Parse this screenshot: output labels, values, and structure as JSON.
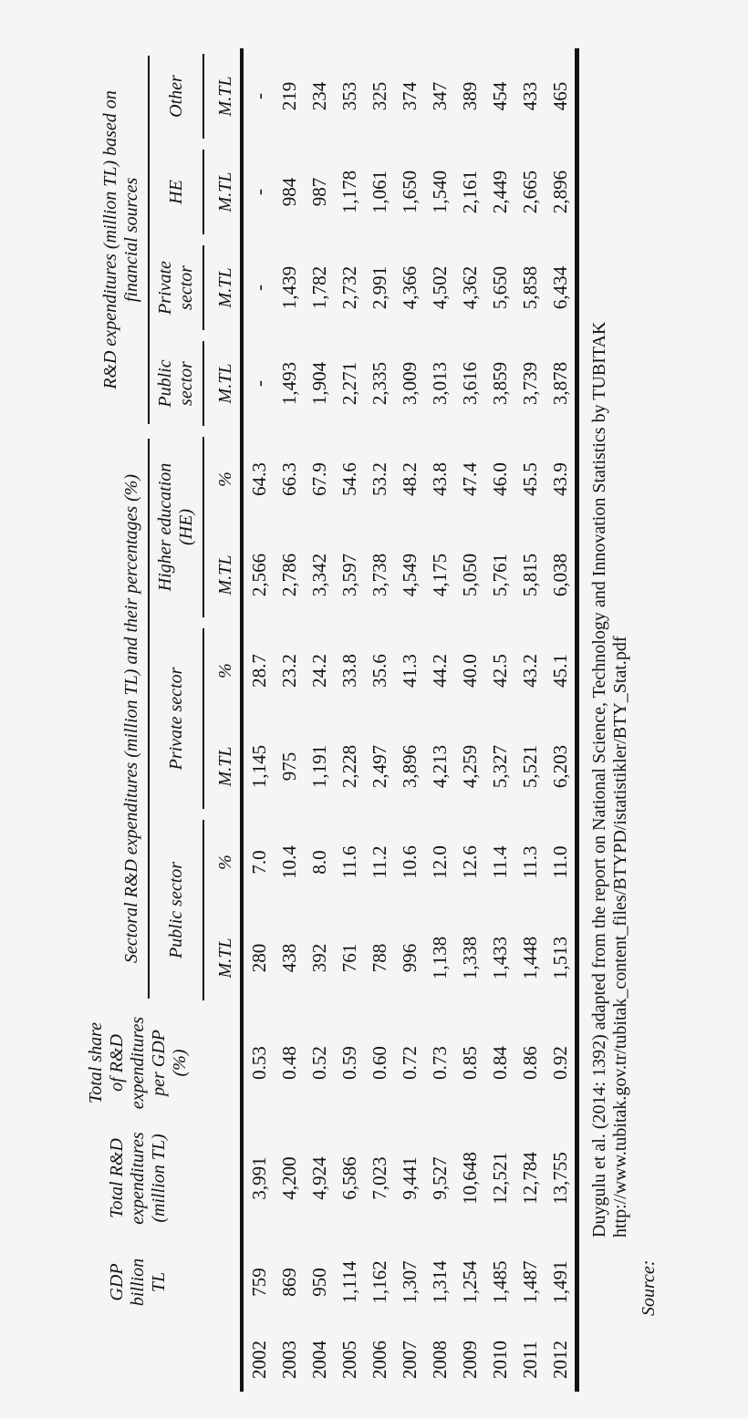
{
  "page": {
    "background": "#f5f5f3",
    "ink": "#131313"
  },
  "table": {
    "left_columns": {
      "year_header_lines": [],
      "gdp_header_lines": [
        "GDP",
        "billion",
        "TL"
      ],
      "total_rd_header_lines": [
        "Total R&D",
        "expenditures",
        "(million TL)"
      ],
      "share_header_lines": [
        "Total share",
        "of R&D",
        "expenditures",
        "per GDP",
        "(%)"
      ]
    },
    "groups": {
      "sectoral": {
        "title_lines": [
          "Sectoral R&D expenditures (million TL) and their percentages (%)"
        ],
        "subheaders": [
          {
            "lines": [
              "Public sector"
            ]
          },
          {
            "lines": [
              "Private sector"
            ]
          },
          {
            "lines": [
              "Higher education",
              "(HE)"
            ]
          }
        ]
      },
      "financial": {
        "title_lines": [
          "R&D expenditures (million TL) based on",
          "financial sources"
        ],
        "subheaders": [
          {
            "lines": [
              "Public",
              "sector"
            ]
          },
          {
            "lines": [
              "Private",
              "sector"
            ]
          },
          {
            "lines": [
              "HE"
            ]
          },
          {
            "lines": [
              "Other"
            ]
          }
        ]
      }
    },
    "measure_row": [
      "M.TL",
      "%",
      "M.TL",
      "%",
      "M.TL",
      "%",
      "M.TL",
      "M.TL",
      "M.TL",
      "M.TL"
    ],
    "rows": [
      {
        "year": "2002",
        "values": [
          "759",
          "3,991",
          "0.53",
          "280",
          "7.0",
          "1,145",
          "28.7",
          "2,566",
          "64.3",
          "-",
          "-",
          "-",
          "-"
        ]
      },
      {
        "year": "2003",
        "values": [
          "869",
          "4,200",
          "0.48",
          "438",
          "10.4",
          "975",
          "23.2",
          "2,786",
          "66.3",
          "1,493",
          "1,439",
          "984",
          "219"
        ]
      },
      {
        "year": "2004",
        "values": [
          "950",
          "4,924",
          "0.52",
          "392",
          "8.0",
          "1,191",
          "24.2",
          "3,342",
          "67.9",
          "1,904",
          "1,782",
          "987",
          "234"
        ]
      },
      {
        "year": "2005",
        "values": [
          "1,114",
          "6,586",
          "0.59",
          "761",
          "11.6",
          "2,228",
          "33.8",
          "3,597",
          "54.6",
          "2,271",
          "2,732",
          "1,178",
          "353"
        ]
      },
      {
        "year": "2006",
        "values": [
          "1,162",
          "7,023",
          "0.60",
          "788",
          "11.2",
          "2,497",
          "35.6",
          "3,738",
          "53.2",
          "2,335",
          "2,991",
          "1,061",
          "325"
        ]
      },
      {
        "year": "2007",
        "values": [
          "1,307",
          "9,441",
          "0.72",
          "996",
          "10.6",
          "3,896",
          "41.3",
          "4,549",
          "48.2",
          "3,009",
          "4,366",
          "1,650",
          "374"
        ]
      },
      {
        "year": "2008",
        "values": [
          "1,314",
          "9,527",
          "0.73",
          "1,138",
          "12.0",
          "4,213",
          "44.2",
          "4,175",
          "43.8",
          "3,013",
          "4,502",
          "1,540",
          "347"
        ]
      },
      {
        "year": "2009",
        "values": [
          "1,254",
          "10,648",
          "0.85",
          "1,338",
          "12.6",
          "4,259",
          "40.0",
          "5,050",
          "47.4",
          "3,616",
          "4,362",
          "2,161",
          "389"
        ]
      },
      {
        "year": "2010",
        "values": [
          "1,485",
          "12,521",
          "0.84",
          "1,433",
          "11.4",
          "5,327",
          "42.5",
          "5,761",
          "46.0",
          "3,859",
          "5,650",
          "2,449",
          "454"
        ]
      },
      {
        "year": "2011",
        "values": [
          "1,487",
          "12,784",
          "0.86",
          "1,448",
          "11.3",
          "5,521",
          "43.2",
          "5,815",
          "45.5",
          "3,739",
          "5,858",
          "2,665",
          "433"
        ]
      },
      {
        "year": "2012",
        "values": [
          "1,491",
          "13,755",
          "0.92",
          "1,513",
          "11.0",
          "6,203",
          "45.1",
          "6,038",
          "43.9",
          "3,878",
          "6,434",
          "2,896",
          "465"
        ]
      }
    ]
  },
  "source_note": {
    "label": "Source:",
    "line1": "Duygulu et al. (2014: 1392) adapted from the report on National Science, Technology and Innovation Statistics by TUBITAK",
    "line2": "http://www.tubitak.gov.tr/tubitak_content_files/BTYPD/istatistikler/BTY_Stat.pdf"
  }
}
